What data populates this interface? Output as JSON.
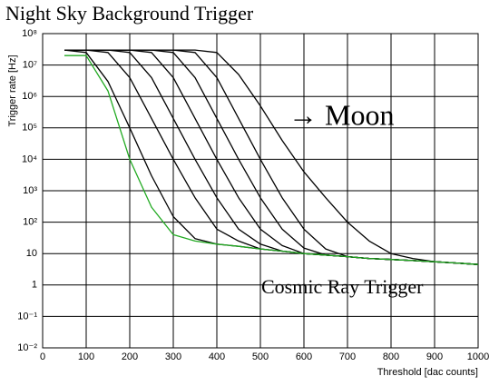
{
  "chart_data": {
    "type": "line",
    "title": "Night Sky Background Trigger",
    "annotations": [
      "→ Moon",
      "Cosmic Ray Trigger"
    ],
    "y_label": "Trigger rate [Hz]",
    "x_label": "Threshold [dac counts]",
    "log_y": true,
    "grid": true,
    "xlim": [
      0,
      1000
    ],
    "xticks": [
      0,
      100,
      200,
      300,
      400,
      500,
      600,
      700,
      800,
      900,
      1000
    ],
    "ylim": [
      0.01,
      100000000
    ],
    "yticks": [
      {
        "value": 0.01,
        "label": "10⁻²"
      },
      {
        "value": 0.1,
        "label": "10⁻¹"
      },
      1,
      10,
      {
        "value": 100,
        "label": "10²"
      },
      {
        "value": 1000,
        "label": "10³"
      },
      {
        "value": 10000,
        "label": "10⁴"
      },
      {
        "value": 100000,
        "label": "10⁵"
      },
      {
        "value": 1000000,
        "label": "10⁶"
      },
      {
        "value": 10000000,
        "label": "10⁷"
      },
      {
        "value": 100000000,
        "label": "10⁸"
      }
    ],
    "x": [
      50,
      100,
      150,
      200,
      250,
      300,
      350,
      400,
      450,
      500,
      550,
      600,
      650,
      700,
      750,
      800,
      850,
      900,
      950,
      1000
    ],
    "series": [
      {
        "color": "#000000",
        "values": [
          30000000,
          30000000,
          30000000,
          30000000,
          30000000,
          30000000,
          30000000,
          25000000,
          5000000,
          500000,
          40000,
          4000,
          600,
          100,
          25,
          10,
          7,
          5.5,
          5,
          4.5
        ]
      },
      {
        "color": "#000000",
        "values": [
          30000000,
          30000000,
          30000000,
          30000000,
          30000000,
          30000000,
          25000000,
          4000000,
          200000,
          10000,
          600,
          60,
          14,
          8,
          7,
          6.5,
          6,
          5.5,
          5,
          4.5
        ]
      },
      {
        "color": "#000000",
        "values": [
          30000000,
          30000000,
          30000000,
          30000000,
          30000000,
          25000000,
          4000000,
          200000,
          10000,
          600,
          60,
          15,
          9,
          8,
          7,
          6.5,
          6,
          5.5,
          5,
          4.5
        ]
      },
      {
        "color": "#000000",
        "values": [
          30000000,
          30000000,
          30000000,
          30000000,
          25000000,
          4000000,
          200000,
          10000,
          600,
          60,
          18,
          10,
          9,
          8,
          7,
          6.5,
          6,
          5.5,
          5,
          4.5
        ]
      },
      {
        "color": "#000000",
        "values": [
          30000000,
          30000000,
          30000000,
          25000000,
          4000000,
          200000,
          10000,
          600,
          60,
          20,
          12,
          10,
          9,
          8,
          7,
          6.5,
          6,
          5.5,
          5,
          4.5
        ]
      },
      {
        "color": "#000000",
        "values": [
          30000000,
          30000000,
          25000000,
          4000000,
          200000,
          10000,
          600,
          60,
          25,
          14,
          12,
          10,
          9,
          8,
          7,
          6.5,
          6,
          5.5,
          5,
          4.5
        ]
      },
      {
        "color": "#000000",
        "values": [
          30000000,
          25000000,
          3000000,
          100000,
          3000,
          150,
          30,
          20,
          17,
          14,
          12,
          10,
          9,
          8,
          7,
          6.5,
          6,
          5.5,
          5,
          4.5
        ]
      },
      {
        "color": "#22aa22",
        "values": [
          20000000,
          20000000,
          1500000,
          10000,
          300,
          40,
          25,
          20,
          17,
          14,
          12,
          10,
          9,
          8,
          7,
          6.5,
          6,
          5.5,
          5,
          4.5
        ]
      }
    ]
  }
}
